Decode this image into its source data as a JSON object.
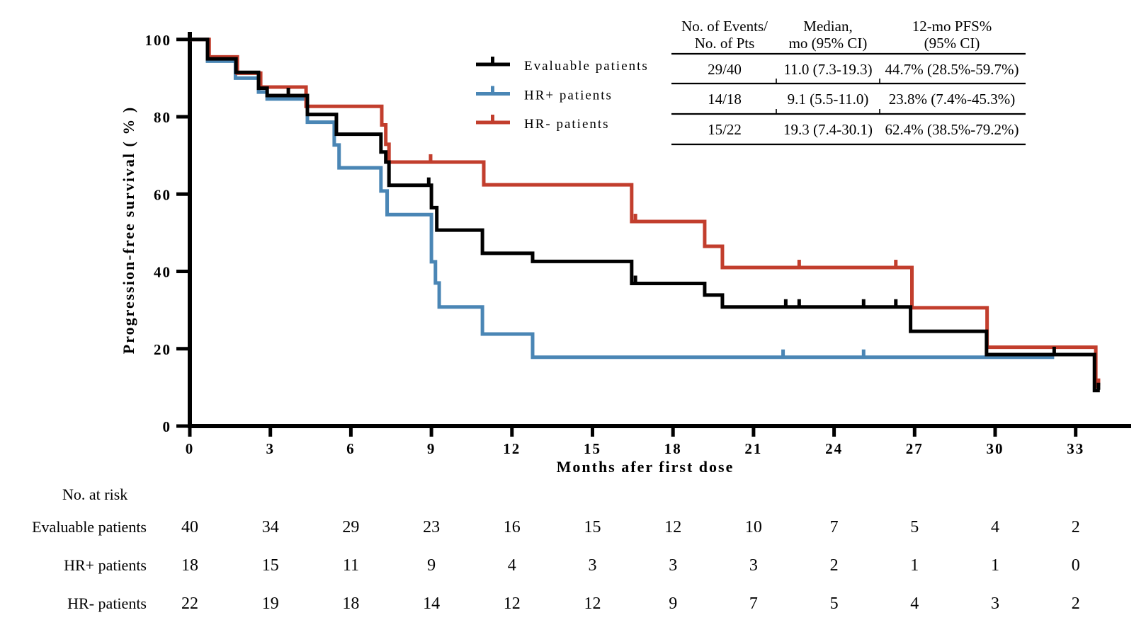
{
  "axes": {
    "x": {
      "label": "Months afer first dose",
      "ticks": [
        0,
        3,
        6,
        9,
        12,
        15,
        18,
        21,
        24,
        27,
        30,
        33
      ],
      "min": 0,
      "max": 35
    },
    "y": {
      "label": "Progression-free survival ( % )",
      "ticks": [
        0,
        20,
        40,
        60,
        80,
        100
      ],
      "min": 0,
      "max": 100
    }
  },
  "colors": {
    "evaluable": "#000000",
    "hr_plus": "#4A86B5",
    "hr_minus": "#C23E2D"
  },
  "legend": [
    {
      "id": "evaluable-patients",
      "label": "Evaluable patients",
      "color": "#000000"
    },
    {
      "id": "hr-plus-patients",
      "label": "HR+ patients",
      "color": "#4A86B5"
    },
    {
      "id": "hr-minus-patients",
      "label": "HR- patients",
      "color": "#C23E2D"
    }
  ],
  "stats_table": {
    "col_headers": [
      [
        "No. of Events/",
        "No. of Pts"
      ],
      [
        "Median,",
        "mo (95% CI)"
      ],
      [
        "12-mo PFS%",
        "(95% CI)"
      ]
    ],
    "rows": [
      [
        "29/40",
        "11.0 (7.3-19.3)",
        "44.7% (28.5%-59.7%)"
      ],
      [
        "14/18",
        "9.1 (5.5-11.0)",
        "23.8% (7.4%-45.3%)"
      ],
      [
        "15/22",
        "19.3 (7.4-30.1)",
        "62.4% (38.5%-79.2%)"
      ]
    ]
  },
  "risk_table": {
    "title": "No. at risk",
    "months": [
      0,
      3,
      6,
      9,
      12,
      15,
      18,
      21,
      24,
      27,
      30,
      33
    ],
    "rows": [
      {
        "label": "Evaluable patients",
        "values": [
          40,
          34,
          29,
          23,
          16,
          15,
          12,
          10,
          7,
          5,
          4,
          2
        ]
      },
      {
        "label": "HR+ patients",
        "values": [
          18,
          15,
          11,
          9,
          4,
          3,
          3,
          3,
          2,
          1,
          1,
          0
        ]
      },
      {
        "label": "HR- patients",
        "values": [
          22,
          19,
          18,
          14,
          12,
          12,
          9,
          7,
          5,
          4,
          3,
          2
        ]
      }
    ]
  },
  "chart_data": {
    "type": "line",
    "subtype": "kaplan-meier-step",
    "title": "",
    "xlabel": "Months afer first dose",
    "ylabel": "Progression-free survival ( % )",
    "xlim": [
      0,
      35
    ],
    "ylim": [
      0,
      100
    ],
    "grid": false,
    "legend_position": "upper-left-inside",
    "series": [
      {
        "id": "evaluable-patients",
        "name": "Evaluable patients",
        "color": "#000000",
        "steps": [
          [
            0,
            100
          ],
          [
            0.66,
            95.0
          ],
          [
            1.72,
            91.5
          ],
          [
            2.56,
            87.4
          ],
          [
            2.88,
            85.5
          ],
          [
            4.38,
            80.6
          ],
          [
            5.46,
            75.5
          ],
          [
            7.12,
            70.9
          ],
          [
            7.3,
            68.3
          ],
          [
            7.42,
            62.3
          ],
          [
            9.0,
            56.5
          ],
          [
            9.2,
            50.7
          ],
          [
            10.9,
            44.7
          ],
          [
            12.77,
            42.6
          ],
          [
            16.46,
            36.9
          ],
          [
            19.18,
            33.9
          ],
          [
            19.84,
            30.8
          ],
          [
            26.85,
            24.5
          ],
          [
            29.68,
            18.5
          ],
          [
            33.7,
            9.2
          ]
        ],
        "end_x": 33.9,
        "censors": [
          [
            3.67,
            85.5
          ],
          [
            8.9,
            62.3
          ],
          [
            16.6,
            36.9
          ],
          [
            22.2,
            30.8
          ],
          [
            22.7,
            30.8
          ],
          [
            25.1,
            30.8
          ],
          [
            26.3,
            30.8
          ],
          [
            32.2,
            18.5
          ],
          [
            33.85,
            9.2
          ]
        ]
      },
      {
        "id": "hr-plus-patients",
        "name": "HR+ patients",
        "color": "#4A86B5",
        "steps": [
          [
            0,
            100
          ],
          [
            0.66,
            94.4
          ],
          [
            1.7,
            90.0
          ],
          [
            2.56,
            86.4
          ],
          [
            2.88,
            84.6
          ],
          [
            4.38,
            78.6
          ],
          [
            5.38,
            72.7
          ],
          [
            5.56,
            66.8
          ],
          [
            7.12,
            60.8
          ],
          [
            7.35,
            54.7
          ],
          [
            9.0,
            42.5
          ],
          [
            9.15,
            37.0
          ],
          [
            9.29,
            30.8
          ],
          [
            10.9,
            23.8
          ],
          [
            12.77,
            17.8
          ]
        ],
        "end_x": 32.2,
        "censors": [
          [
            22.1,
            17.8
          ],
          [
            25.1,
            17.8
          ]
        ]
      },
      {
        "id": "hr-minus-patients",
        "name": "HR- patients",
        "color": "#C23E2D",
        "steps": [
          [
            0,
            100
          ],
          [
            0.72,
            95.5
          ],
          [
            1.77,
            91.3
          ],
          [
            2.64,
            87.7
          ],
          [
            4.33,
            82.7
          ],
          [
            7.15,
            77.9
          ],
          [
            7.3,
            72.9
          ],
          [
            7.42,
            68.3
          ],
          [
            10.95,
            62.4
          ],
          [
            16.46,
            52.9
          ],
          [
            19.18,
            46.5
          ],
          [
            19.84,
            41.0
          ],
          [
            26.9,
            30.6
          ],
          [
            29.7,
            20.4
          ],
          [
            33.75,
            10.3
          ]
        ],
        "end_x": 33.9,
        "censors": [
          [
            8.97,
            68.3
          ],
          [
            16.6,
            52.9
          ],
          [
            22.7,
            41.0
          ],
          [
            26.3,
            41.0
          ],
          [
            33.85,
            10.3
          ]
        ]
      }
    ]
  }
}
